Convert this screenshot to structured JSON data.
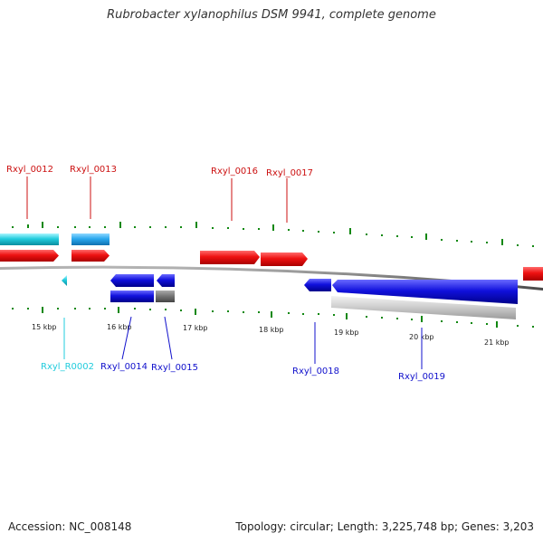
{
  "title": "Rubrobacter xylanophilus DSM 9941, complete genome",
  "colors": {
    "forward_gene": "#ee1111",
    "reverse_gene": "#1111dd",
    "rna": "#22ccdd",
    "tick": "#118811",
    "backbone": "#888888"
  },
  "scale": {
    "tick_labels": [
      "15 kbp",
      "16 kbp",
      "17 kbp",
      "18 kbp",
      "19 kbp",
      "20 kbp",
      "21 kbp"
    ]
  },
  "genes": [
    {
      "label": "Rxyl_0012",
      "strand": "forward"
    },
    {
      "label": "Rxyl_0013",
      "strand": "forward"
    },
    {
      "label": "Rxyl_0016",
      "strand": "forward"
    },
    {
      "label": "Rxyl_0017",
      "strand": "forward"
    },
    {
      "label": "Rxyl_R0002",
      "strand": "reverse",
      "type": "rna"
    },
    {
      "label": "Rxyl_0014",
      "strand": "reverse"
    },
    {
      "label": "Rxyl_0015",
      "strand": "reverse"
    },
    {
      "label": "Rxyl_0018",
      "strand": "reverse"
    },
    {
      "label": "Rxyl_0019",
      "strand": "reverse"
    }
  ],
  "footer": {
    "accession": "Accession: NC_008148",
    "stats": "Topology: circular; Length: 3,225,748 bp; Genes: 3,203"
  }
}
